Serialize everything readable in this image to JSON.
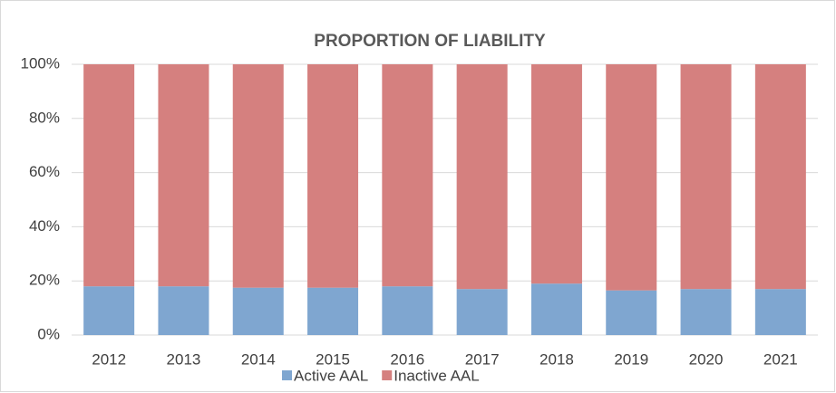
{
  "chart_data": {
    "type": "stacked_bar",
    "title": "PROPORTION OF LIABILITY",
    "categories": [
      "2012",
      "2013",
      "2014",
      "2015",
      "2016",
      "2017",
      "2018",
      "2019",
      "2020",
      "2021"
    ],
    "series": [
      {
        "name": "Active AAL",
        "color": "#7fa6d0",
        "values": [
          18,
          18,
          17.5,
          17.5,
          18,
          17,
          19,
          16.5,
          17,
          17
        ]
      },
      {
        "name": "Inactive AAL",
        "color": "#d5807f",
        "values": [
          82,
          82,
          82.5,
          82.5,
          82,
          83,
          81,
          83.5,
          83,
          83
        ]
      }
    ],
    "ylim": [
      0,
      100
    ],
    "yticks": [
      {
        "value": 0,
        "label": "0%"
      },
      {
        "value": 20,
        "label": "20%"
      },
      {
        "value": 40,
        "label": "40%"
      },
      {
        "value": 60,
        "label": "60%"
      },
      {
        "value": 80,
        "label": "80%"
      },
      {
        "value": 100,
        "label": "100%"
      }
    ],
    "grid": true,
    "legend": "bottom"
  }
}
